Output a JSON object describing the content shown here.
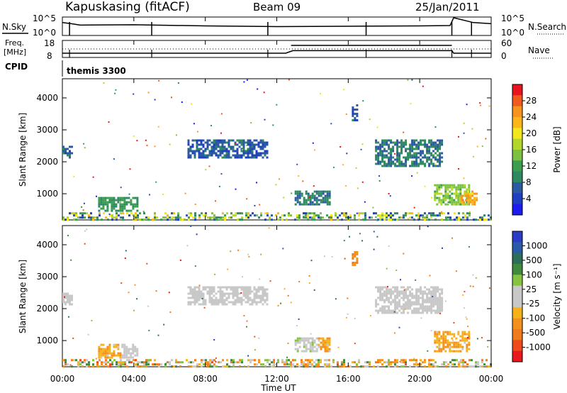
{
  "header": {
    "station": "Kapuskasing (fitACF)",
    "beam": "Beam 09",
    "date": "25/Jan/2011"
  },
  "noise_panel": {
    "left_label": "N.Sky",
    "right_label": "N.Search",
    "left_ticks": [
      "10^5",
      "10^0"
    ],
    "right_ticks": [
      "10^5",
      "10^0"
    ]
  },
  "freq_panel": {
    "left_label_1": "Freq.",
    "left_label_2": "[MHz]",
    "right_label": "Nave",
    "left_ticks": [
      "18",
      "8"
    ],
    "right_ticks": [
      "60",
      "0"
    ]
  },
  "cpid_panel": {
    "label": "CPID",
    "program": "themis 3300"
  },
  "power_colorbar": {
    "label": "Power [dB]",
    "ticks": [
      "28",
      "24",
      "20",
      "16",
      "12",
      "8",
      "4"
    ],
    "colors": [
      "#e8141e",
      "#f05a1e",
      "#f79420",
      "#fbb71a",
      "#f4e61c",
      "#b3d62c",
      "#7bc242",
      "#3a9e4e",
      "#2e8860",
      "#2c5aa0",
      "#1e3fc0",
      "#1c1cf0"
    ]
  },
  "velocity_colorbar": {
    "label": "Velocity [m s⁻¹]",
    "ticks": [
      "1000",
      "500",
      "100",
      "25",
      "-25",
      "-100",
      "-500",
      "-1000"
    ],
    "colors": [
      "#2a3dc4",
      "#2a5aa8",
      "#2d6e5a",
      "#3f8a3c",
      "#86c440",
      "#c8c8c8",
      "#c8c8c8",
      "#f7b21a",
      "#f4901e",
      "#f07a1c",
      "#ee4a1c",
      "#e8181c"
    ]
  },
  "axes": {
    "ylabel": "Slant Range [km]",
    "xlabel": "Time UT",
    "yticks": [
      "1000",
      "2000",
      "3000",
      "4000"
    ],
    "xticks": [
      "00:00",
      "04:00",
      "08:00",
      "12:00",
      "16:00",
      "20:00",
      "00:00"
    ]
  },
  "chart_data": [
    {
      "type": "heatmap",
      "title": "Power [dB]",
      "xlabel": "Time UT",
      "ylabel": "Slant Range [km]",
      "xlim": [
        0,
        24
      ],
      "ylim": [
        180,
        4600
      ],
      "color_range": [
        0,
        30
      ],
      "regions": [
        {
          "t": [
            0.0,
            0.5
          ],
          "r": [
            2150,
            2500
          ],
          "value": 6
        },
        {
          "t": [
            2.0,
            4.2
          ],
          "r": [
            500,
            900
          ],
          "value": 10
        },
        {
          "t": [
            7.0,
            11.5
          ],
          "r": [
            2150,
            2700
          ],
          "value": 6
        },
        {
          "t": [
            13.0,
            15.0
          ],
          "r": [
            700,
            1100
          ],
          "value": 8
        },
        {
          "t": [
            16.2,
            16.5
          ],
          "r": [
            3300,
            3800
          ],
          "value": 6
        },
        {
          "t": [
            17.5,
            21.2
          ],
          "r": [
            1900,
            2700
          ],
          "value": 8
        },
        {
          "t": [
            20.8,
            22.8
          ],
          "r": [
            700,
            1300
          ],
          "value": 14
        },
        {
          "t": [
            22.3,
            23.2
          ],
          "r": [
            700,
            1100
          ],
          "value": 22
        },
        {
          "t": [
            0.0,
            24.0
          ],
          "r": [
            180,
            420
          ],
          "value": 12
        }
      ]
    },
    {
      "type": "heatmap",
      "title": "Velocity [m s⁻¹]",
      "xlabel": "Time UT",
      "ylabel": "Slant Range [km]",
      "xlim": [
        0,
        24
      ],
      "ylim": [
        180,
        4600
      ],
      "color_range": [
        -1000,
        1000
      ],
      "regions": [
        {
          "t": [
            0.0,
            0.5
          ],
          "r": [
            2150,
            2500
          ],
          "value": 0
        },
        {
          "t": [
            2.0,
            3.3
          ],
          "r": [
            500,
            900
          ],
          "value": -300
        },
        {
          "t": [
            3.3,
            4.2
          ],
          "r": [
            500,
            900
          ],
          "value": 0
        },
        {
          "t": [
            7.0,
            11.5
          ],
          "r": [
            2150,
            2700
          ],
          "value": 0
        },
        {
          "t": [
            13.0,
            14.3
          ],
          "r": [
            700,
            1100
          ],
          "value": 60
        },
        {
          "t": [
            14.3,
            15.0
          ],
          "r": [
            700,
            1100
          ],
          "value": -300
        },
        {
          "t": [
            16.2,
            16.5
          ],
          "r": [
            3300,
            3800
          ],
          "value": -500
        },
        {
          "t": [
            17.5,
            21.2
          ],
          "r": [
            1900,
            2700
          ],
          "value": 0
        },
        {
          "t": [
            20.8,
            22.8
          ],
          "r": [
            700,
            1300
          ],
          "value": -300
        },
        {
          "t": [
            0.0,
            24.0
          ],
          "r": [
            180,
            420
          ],
          "value": -100
        }
      ]
    },
    {
      "type": "line",
      "title": "N.Sky",
      "xlim": [
        0,
        24
      ],
      "series": [
        {
          "x": [
            0,
            0.5,
            1,
            4,
            8,
            12,
            16,
            20,
            21.7,
            21.9,
            23,
            24
          ],
          "values": [
            3.5,
            3.2,
            2.8,
            2.9,
            2.6,
            2.4,
            2.5,
            2.6,
            2.7,
            4.8,
            3.5,
            3.2
          ]
        }
      ]
    },
    {
      "type": "line",
      "title": "Freq. [MHz]",
      "xlim": [
        0,
        24
      ],
      "ylim": [
        8,
        18
      ],
      "series": [
        {
          "x": [
            0,
            12.5,
            12.9,
            21.8,
            21.9,
            24
          ],
          "values": [
            10.5,
            10.5,
            12.0,
            12.0,
            10.5,
            10.5
          ]
        }
      ]
    }
  ]
}
